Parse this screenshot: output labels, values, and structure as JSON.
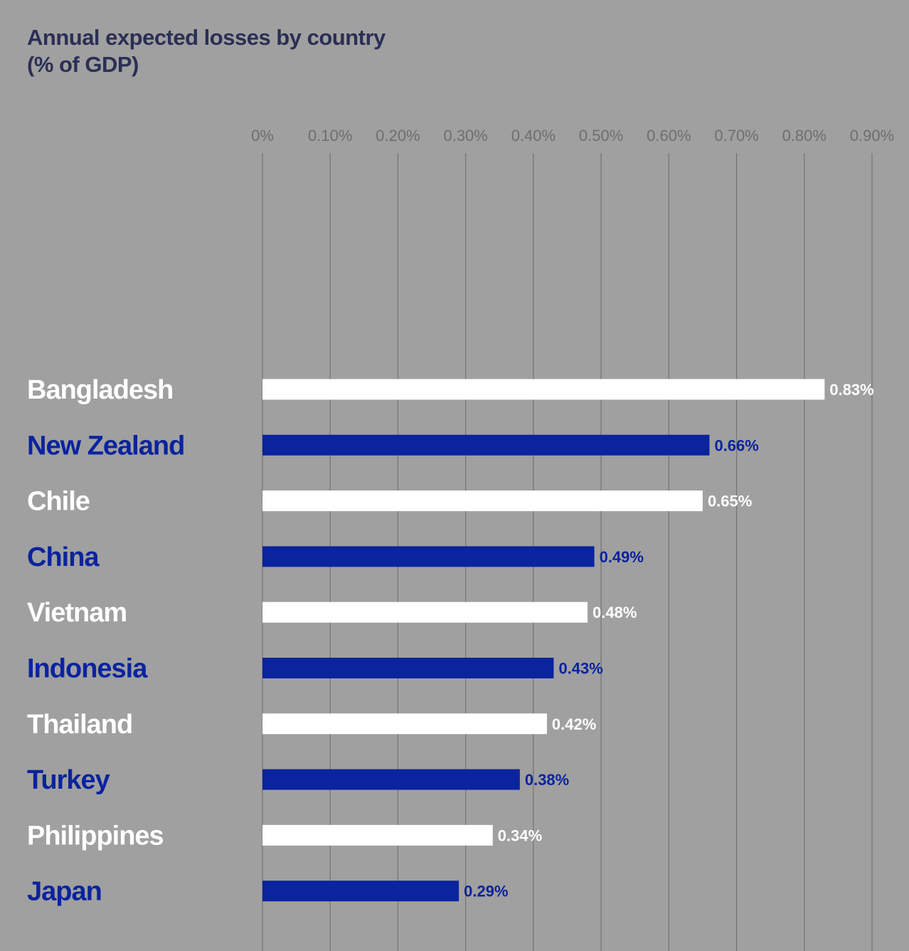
{
  "title_line1": "Annual expected losses by country",
  "title_line2": "(% of GDP)",
  "colors": {
    "background": "#a0a0a0",
    "title": "#2b2f55",
    "bar_light": "#ffffff",
    "bar_dark": "#0a239e",
    "gridline": "#737373",
    "tick_text": "#6e6e6e"
  },
  "chart_data": {
    "type": "bar",
    "orientation": "horizontal",
    "title": "Annual expected losses by country (% of GDP)",
    "categories": [
      "Bangladesh",
      "New Zealand",
      "Chile",
      "China",
      "Vietnam",
      "Indonesia",
      "Thailand",
      "Turkey",
      "Philippines",
      "Japan"
    ],
    "values": [
      0.83,
      0.66,
      0.65,
      0.49,
      0.48,
      0.43,
      0.42,
      0.38,
      0.34,
      0.29
    ],
    "value_labels": [
      "0.83%",
      "0.66%",
      "0.65%",
      "0.49%",
      "0.48%",
      "0.43%",
      "0.42%",
      "0.38%",
      "0.34%",
      "0.29%"
    ],
    "bar_colors": [
      "light",
      "dark",
      "light",
      "dark",
      "light",
      "dark",
      "light",
      "dark",
      "light",
      "dark"
    ],
    "xlim": [
      0,
      0.9
    ],
    "xticks": [
      0,
      0.1,
      0.2,
      0.3,
      0.4,
      0.5,
      0.6,
      0.7,
      0.8,
      0.9
    ],
    "xtick_labels": [
      "0%",
      "0.10%",
      "0.20%",
      "0.30%",
      "0.40%",
      "0.50%",
      "0.60%",
      "0.70%",
      "0.80%",
      "0.90%"
    ],
    "xlabel": "",
    "ylabel": "",
    "axis_position": "top",
    "grid": true,
    "legend": "none"
  }
}
